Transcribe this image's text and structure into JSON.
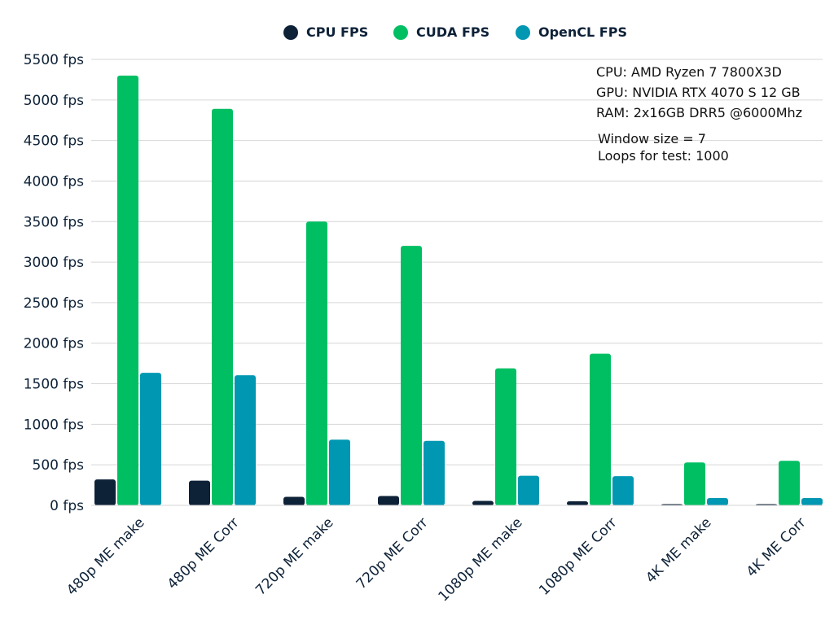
{
  "chart_data": {
    "type": "bar",
    "title": "",
    "xlabel": "",
    "ylabel": "",
    "ylim": [
      0,
      5500
    ],
    "ytick_step": 500,
    "ytick_suffix": " fps",
    "grid": true,
    "legend_position": "top-center",
    "categories": [
      "480p ME make",
      "480p ME Corr",
      "720p ME make",
      "720p ME Corr",
      "1080p ME make",
      "1080p ME Corr",
      "4K ME make",
      "4K ME Corr"
    ],
    "series": [
      {
        "name": "CPU FPS",
        "color": "#0d2137",
        "values": [
          320,
          305,
          105,
          115,
          55,
          50,
          8,
          8
        ]
      },
      {
        "name": "CUDA FPS",
        "color": "#00bf63",
        "values": [
          5300,
          4890,
          3500,
          3200,
          1690,
          1870,
          530,
          550
        ]
      },
      {
        "name": "OpenCL FPS",
        "color": "#0097b2",
        "values": [
          1635,
          1605,
          810,
          795,
          365,
          360,
          90,
          90
        ]
      }
    ],
    "annotations": [
      "CPU: AMD Ryzen 7 7800X3D",
      "GPU: NVIDIA RTX 4070 S 12 GB",
      "RAM: 2x16GB DRR5 @6000Mhz",
      "Window size = 7",
      "Loops for test: 1000"
    ]
  }
}
